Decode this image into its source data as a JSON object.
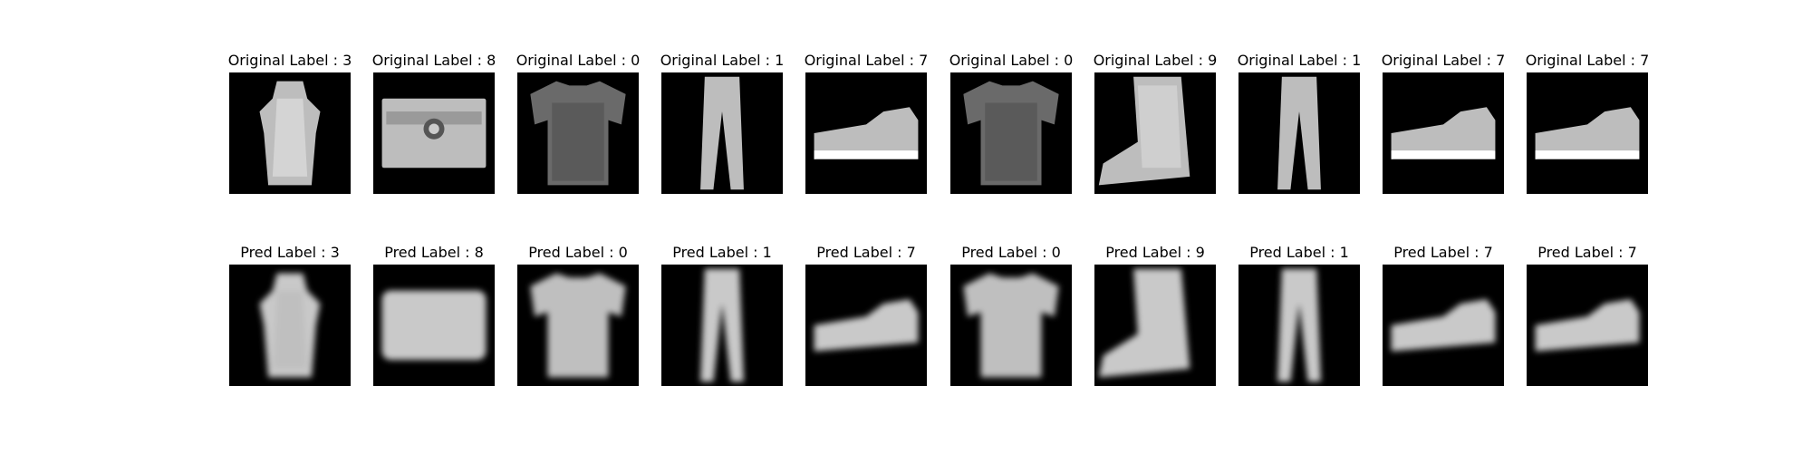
{
  "chart_data": {
    "type": "image-grid",
    "rows": [
      {
        "row": "original",
        "label_prefix": "Original Label : ",
        "labels": [
          3,
          8,
          0,
          1,
          7,
          0,
          9,
          1,
          7,
          7
        ],
        "titles": [
          "Original Label : 3",
          "Original Label : 8",
          "Original Label : 0",
          "Original Label : 1",
          "Original Label : 7",
          "Original Label : 0",
          "Original Label : 9",
          "Original Label : 1",
          "Original Label : 7",
          "Original Label : 7"
        ]
      },
      {
        "row": "predicted",
        "label_prefix": "Pred Label : ",
        "labels": [
          3,
          8,
          0,
          1,
          7,
          0,
          9,
          1,
          7,
          7
        ],
        "titles": [
          "Pred Label : 3",
          "Pred Label : 8",
          "Pred Label : 0",
          "Pred Label : 1",
          "Pred Label : 7",
          "Pred Label : 0",
          "Pred Label : 9",
          "Pred Label : 1",
          "Pred Label : 7",
          "Pred Label : 7"
        ]
      }
    ],
    "image_kind": [
      "dress",
      "bag",
      "tshirt",
      "trouser",
      "sneaker",
      "tshirt",
      "boot",
      "trouser",
      "sneaker",
      "sneaker"
    ],
    "colormap": "gray"
  }
}
